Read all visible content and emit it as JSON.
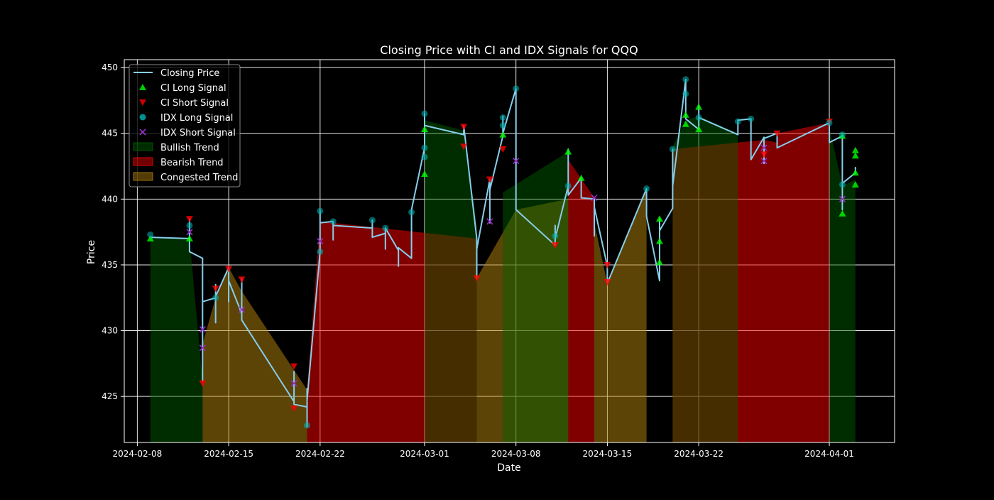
{
  "chart_data": {
    "type": "line",
    "title": "Closing Price with CI and IDX Signals for QQQ",
    "xlabel": "Date",
    "ylabel": "Price",
    "xlim": [
      "2024-02-07",
      "2024-04-06"
    ],
    "ylim": [
      421.5,
      450.6
    ],
    "x_ticks": [
      "2024-02-08",
      "2024-02-15",
      "2024-02-22",
      "2024-03-01",
      "2024-03-08",
      "2024-03-15",
      "2024-03-22",
      "2024-04-01"
    ],
    "y_ticks": [
      425,
      430,
      435,
      440,
      445,
      450
    ],
    "grid": true,
    "legend_position": "top-left",
    "colors": {
      "background": "#000000",
      "price_line": "#87ceeb",
      "ci_long": "#00ff00",
      "ci_short": "#ff0000",
      "idx_long": "#00b5b5",
      "idx_short": "#9932cc",
      "bullish": "#006400",
      "bearish": "#ff0000",
      "congested": "#b8860b"
    },
    "legend": [
      {
        "label": "Closing Price",
        "kind": "line",
        "color": "#87ceeb"
      },
      {
        "label": "CI Long Signal",
        "kind": "triangle-up",
        "color": "#00ff00"
      },
      {
        "label": "CI Short Signal",
        "kind": "triangle-down",
        "color": "#ff0000"
      },
      {
        "label": "IDX Long Signal",
        "kind": "circle",
        "color": "#00b5b5"
      },
      {
        "label": "IDX Short Signal",
        "kind": "x",
        "color": "#9932cc"
      },
      {
        "label": "Bullish Trend",
        "kind": "patch",
        "color": "#006400"
      },
      {
        "label": "Bearish Trend",
        "kind": "patch",
        "color": "#ff0000"
      },
      {
        "label": "Congested Trend",
        "kind": "patch",
        "color": "#b8860b"
      }
    ],
    "series": [
      {
        "name": "Closing Price",
        "x": [
          "2024-02-09",
          "2024-02-12",
          "2024-02-12",
          "2024-02-12",
          "2024-02-12",
          "2024-02-13",
          "2024-02-13",
          "2024-02-13",
          "2024-02-13",
          "2024-02-13",
          "2024-02-14",
          "2024-02-14",
          "2024-02-14",
          "2024-02-14",
          "2024-02-15",
          "2024-02-15",
          "2024-02-15",
          "2024-02-16",
          "2024-02-16",
          "2024-02-16",
          "2024-02-20",
          "2024-02-20",
          "2024-02-20",
          "2024-02-21",
          "2024-02-21",
          "2024-02-21",
          "2024-02-21",
          "2024-02-22",
          "2024-02-22",
          "2024-02-22",
          "2024-02-23",
          "2024-02-23",
          "2024-02-23",
          "2024-02-26",
          "2024-02-26",
          "2024-02-26",
          "2024-02-27",
          "2024-02-27",
          "2024-02-27",
          "2024-02-28",
          "2024-02-28",
          "2024-02-28",
          "2024-02-29",
          "2024-02-29",
          "2024-02-29",
          "2024-03-01",
          "2024-03-01",
          "2024-03-01",
          "2024-03-04",
          "2024-03-04",
          "2024-03-05",
          "2024-03-05",
          "2024-03-05",
          "2024-03-06",
          "2024-03-06",
          "2024-03-06",
          "2024-03-07",
          "2024-03-07",
          "2024-03-07",
          "2024-03-08",
          "2024-03-08",
          "2024-03-11",
          "2024-03-11",
          "2024-03-11",
          "2024-03-12",
          "2024-03-12",
          "2024-03-12",
          "2024-03-13",
          "2024-03-13",
          "2024-03-14",
          "2024-03-14",
          "2024-03-14",
          "2024-03-15",
          "2024-03-15",
          "2024-03-18",
          "2024-03-18",
          "2024-03-18",
          "2024-03-19",
          "2024-03-19",
          "2024-03-19",
          "2024-03-20",
          "2024-03-20",
          "2024-03-20",
          "2024-03-21",
          "2024-03-21",
          "2024-03-21",
          "2024-03-22",
          "2024-03-22",
          "2024-03-22",
          "2024-03-25",
          "2024-03-25",
          "2024-03-26",
          "2024-03-26",
          "2024-03-26",
          "2024-03-27",
          "2024-03-27",
          "2024-03-27",
          "2024-03-28",
          "2024-03-28",
          "2024-04-01",
          "2024-04-01",
          "2024-04-01",
          "2024-04-02",
          "2024-04-02",
          "2024-04-02",
          "2024-04-03",
          "2024-04-03",
          "2024-04-03"
        ],
        "values": [
          437.1,
          437.0,
          438.5,
          437.2,
          436.0,
          435.5,
          430.0,
          426.2,
          428.9,
          432.2,
          432.5,
          430.6,
          433.5,
          432.6,
          434.8,
          432.2,
          433.8,
          431.3,
          434.0,
          430.8,
          424.6,
          426.9,
          424.4,
          424.2,
          422.7,
          425.6,
          424.7,
          436.0,
          439.1,
          438.2,
          438.3,
          436.9,
          438.0,
          437.8,
          438.4,
          437.1,
          437.4,
          436.2,
          437.8,
          436.1,
          434.9,
          436.3,
          435.5,
          437.9,
          439.2,
          443.9,
          446.5,
          445.6,
          444.9,
          445.6,
          437.0,
          434.0,
          436.2,
          441.5,
          438.2,
          440.7,
          444.8,
          446.3,
          445.0,
          448.4,
          439.2,
          436.5,
          438.0,
          437.0,
          441.0,
          443.8,
          440.3,
          441.6,
          440.1,
          440.0,
          437.2,
          439.4,
          434.9,
          433.6,
          440.8,
          439.3,
          438.7,
          433.8,
          438.5,
          437.6,
          439.3,
          443.8,
          441.0,
          449.1,
          448.0,
          446.1,
          445.3,
          447.1,
          446.2,
          444.9,
          446.0,
          446.1,
          443.5,
          443.0,
          444.7,
          442.7,
          444.6,
          445.0,
          443.9,
          445.8,
          445.9,
          444.3,
          444.8,
          439.2,
          441.2,
          442.0,
          442.4,
          442.1
        ]
      },
      {
        "name": "CI Long Signal",
        "x": [
          "2024-02-09",
          "2024-02-12",
          "2024-03-01",
          "2024-03-01",
          "2024-03-07",
          "2024-03-12",
          "2024-03-13",
          "2024-03-19",
          "2024-03-19",
          "2024-03-19",
          "2024-03-21",
          "2024-03-21",
          "2024-03-22",
          "2024-03-22",
          "2024-04-02",
          "2024-04-02",
          "2024-04-03",
          "2024-04-03",
          "2024-04-03",
          "2024-04-03"
        ],
        "values": [
          437.0,
          437.0,
          441.9,
          445.3,
          444.9,
          443.6,
          441.6,
          438.5,
          436.8,
          435.2,
          446.4,
          445.7,
          445.3,
          447.0,
          444.8,
          438.9,
          443.7,
          443.3,
          442.0,
          441.1
        ]
      },
      {
        "name": "CI Short Signal",
        "x": [
          "2024-02-12",
          "2024-02-13",
          "2024-02-14",
          "2024-02-15",
          "2024-02-16",
          "2024-02-20",
          "2024-02-20",
          "2024-03-04",
          "2024-03-04",
          "2024-03-05",
          "2024-03-06",
          "2024-03-07",
          "2024-03-11",
          "2024-03-15",
          "2024-03-15",
          "2024-03-27",
          "2024-03-28",
          "2024-04-01"
        ],
        "values": [
          438.5,
          426.0,
          433.2,
          434.7,
          433.9,
          427.3,
          424.1,
          445.5,
          444.0,
          434.0,
          441.5,
          443.8,
          436.5,
          435.0,
          433.7,
          443.4,
          445.0,
          445.9
        ]
      },
      {
        "name": "IDX Long Signal",
        "x": [
          "2024-02-09",
          "2024-02-12",
          "2024-02-14",
          "2024-02-21",
          "2024-02-22",
          "2024-02-22",
          "2024-02-23",
          "2024-02-26",
          "2024-02-27",
          "2024-02-29",
          "2024-03-01",
          "2024-03-01",
          "2024-03-01",
          "2024-03-07",
          "2024-03-07",
          "2024-03-08",
          "2024-03-11",
          "2024-03-12",
          "2024-03-18",
          "2024-03-20",
          "2024-03-21",
          "2024-03-21",
          "2024-03-22",
          "2024-03-25",
          "2024-03-26",
          "2024-04-01",
          "2024-04-02",
          "2024-04-02"
        ],
        "values": [
          437.3,
          438.0,
          432.5,
          422.8,
          436.0,
          439.1,
          438.3,
          438.4,
          437.8,
          439.0,
          443.9,
          446.5,
          443.2,
          446.2,
          445.6,
          448.4,
          437.2,
          441.0,
          440.8,
          443.8,
          449.1,
          448.0,
          446.2,
          445.9,
          446.1,
          445.8,
          444.9,
          441.1
        ]
      },
      {
        "name": "IDX Short Signal",
        "x": [
          "2024-02-12",
          "2024-02-13",
          "2024-02-13",
          "2024-02-16",
          "2024-02-20",
          "2024-02-22",
          "2024-03-06",
          "2024-03-08",
          "2024-03-14",
          "2024-03-27",
          "2024-03-27",
          "2024-04-02"
        ],
        "values": [
          437.5,
          430.1,
          428.7,
          431.6,
          426.0,
          436.8,
          438.3,
          442.9,
          440.1,
          443.9,
          442.9,
          440.0
        ]
      }
    ],
    "trend_regions": [
      {
        "trend": "Bullish",
        "x": [
          "2024-02-09",
          "2024-02-12",
          "2024-02-13"
        ],
        "values": [
          437.1,
          437.0,
          426.2
        ]
      },
      {
        "trend": "Congested",
        "x": [
          "2024-02-13",
          "2024-02-14",
          "2024-02-15",
          "2024-02-16"
        ],
        "values": [
          429.0,
          432.5,
          434.8,
          433.0
        ]
      },
      {
        "trend": "Congested",
        "x": [
          "2024-02-16",
          "2024-02-20",
          "2024-02-21"
        ],
        "values": [
          433.0,
          427.0,
          425.5
        ]
      },
      {
        "trend": "Bearish",
        "x": [
          "2024-02-21",
          "2024-02-22",
          "2024-03-05"
        ],
        "values": [
          425.5,
          438.3,
          437.0
        ]
      },
      {
        "trend": "Bullish",
        "x": [
          "2024-03-01",
          "2024-03-04",
          "2024-03-05"
        ],
        "values": [
          446.0,
          445.2,
          438.0
        ]
      },
      {
        "trend": "Congested",
        "x": [
          "2024-03-05",
          "2024-03-08",
          "2024-03-12"
        ],
        "values": [
          434.0,
          439.2,
          440.0
        ]
      },
      {
        "trend": "Bullish",
        "x": [
          "2024-03-07",
          "2024-03-12"
        ],
        "values": [
          440.5,
          443.6
        ]
      },
      {
        "trend": "Bearish",
        "x": [
          "2024-03-12",
          "2024-03-14"
        ],
        "values": [
          443.0,
          440.1
        ]
      },
      {
        "trend": "Congested",
        "x": [
          "2024-03-14",
          "2024-03-15",
          "2024-03-18"
        ],
        "values": [
          438.2,
          433.6,
          440.8
        ]
      },
      {
        "trend": "Bearish",
        "x": [
          "2024-03-20",
          "2024-03-27",
          "2024-03-28"
        ],
        "values": [
          443.8,
          444.5,
          444.3
        ]
      },
      {
        "trend": "Bullish",
        "x": [
          "2024-03-20",
          "2024-03-21",
          "2024-03-22",
          "2024-03-25"
        ],
        "values": [
          444.0,
          446.0,
          446.3,
          445.0
        ]
      },
      {
        "trend": "Bearish",
        "x": [
          "2024-03-28",
          "2024-04-01"
        ],
        "values": [
          445.0,
          445.8
        ]
      },
      {
        "trend": "Bullish",
        "x": [
          "2024-04-01",
          "2024-04-02",
          "2024-04-03"
        ],
        "values": [
          445.5,
          441.0,
          441.5
        ]
      }
    ]
  }
}
